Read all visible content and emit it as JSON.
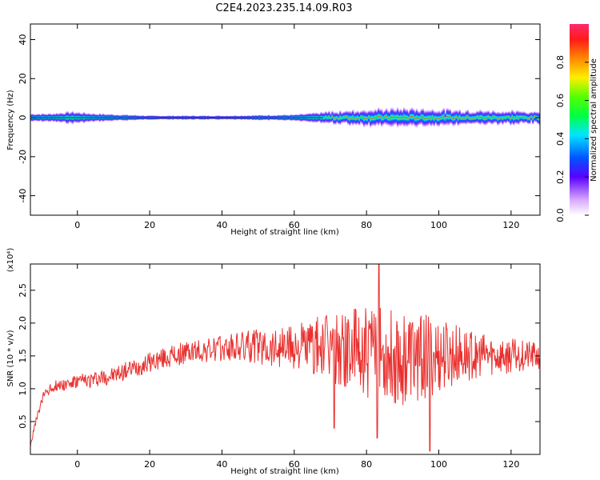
{
  "title": "C2E4.2023.235.14.09.R03",
  "chart_data": [
    {
      "type": "heatmap",
      "xlabel": "Height of straight line (km)",
      "ylabel": "Frequency (Hz)",
      "xlim": [
        -13,
        128
      ],
      "ylim": [
        -50,
        48
      ],
      "xticks": [
        "0",
        "20",
        "40",
        "60",
        "80",
        "100",
        "120"
      ],
      "yticks": [
        "-40",
        "-20",
        "0",
        "20",
        "40"
      ],
      "band_center_hz": 0,
      "band_halfwidth_hz": [
        [
          -13,
          2
        ],
        [
          -8,
          2
        ],
        [
          -2,
          3
        ],
        [
          5,
          2
        ],
        [
          20,
          1
        ],
        [
          40,
          1
        ],
        [
          60,
          1.5
        ],
        [
          70,
          3
        ],
        [
          80,
          4
        ],
        [
          90,
          4.5
        ],
        [
          100,
          4
        ],
        [
          110,
          3.5
        ],
        [
          128,
          3
        ]
      ],
      "colorbar": {
        "label": "Normalized spectral amplitude",
        "range": [
          0,
          1
        ],
        "ticks": [
          "0.0",
          "0.2",
          "0.4",
          "0.6",
          "0.8"
        ]
      }
    },
    {
      "type": "line",
      "xlabel": "Height of straight line (km)",
      "ylabel": "SNR (10 * v/v)",
      "y_scale_label": "(x10⁴)",
      "xlim": [
        -13,
        128
      ],
      "ylim": [
        0,
        2.9
      ],
      "xticks": [
        "0",
        "20",
        "40",
        "60",
        "80",
        "100",
        "120"
      ],
      "yticks": [
        "0.5",
        "1.0",
        "1.5",
        "2.0",
        "2.5"
      ],
      "color": "#e8312f",
      "trend": [
        [
          -13,
          0.15
        ],
        [
          -11,
          0.6
        ],
        [
          -9,
          0.95
        ],
        [
          -6,
          1.05
        ],
        [
          0,
          1.1
        ],
        [
          10,
          1.2
        ],
        [
          20,
          1.4
        ],
        [
          30,
          1.55
        ],
        [
          40,
          1.6
        ],
        [
          50,
          1.65
        ],
        [
          60,
          1.65
        ],
        [
          70,
          1.6
        ],
        [
          80,
          1.55
        ],
        [
          90,
          1.5
        ],
        [
          100,
          1.5
        ],
        [
          110,
          1.5
        ],
        [
          120,
          1.5
        ],
        [
          128,
          1.5
        ]
      ],
      "noise_amplitude": [
        [
          -13,
          0.05
        ],
        [
          0,
          0.12
        ],
        [
          20,
          0.15
        ],
        [
          40,
          0.2
        ],
        [
          60,
          0.35
        ],
        [
          70,
          0.55
        ],
        [
          80,
          0.7
        ],
        [
          90,
          0.75
        ],
        [
          100,
          0.6
        ],
        [
          110,
          0.35
        ],
        [
          128,
          0.2
        ]
      ],
      "peaks": [
        [
          83.5,
          2.9
        ],
        [
          97.5,
          0.05
        ],
        [
          71,
          0.4
        ],
        [
          83,
          0.25
        ]
      ]
    }
  ]
}
